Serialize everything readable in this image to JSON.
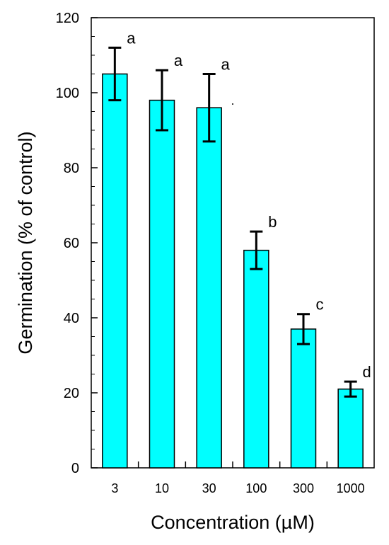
{
  "chart_data": {
    "type": "bar",
    "categories": [
      "3",
      "10",
      "30",
      "100",
      "300",
      "1000"
    ],
    "values": [
      105,
      98,
      96,
      58,
      37,
      21
    ],
    "error_lower": [
      98,
      90,
      87,
      53,
      33,
      19
    ],
    "error_upper": [
      112,
      106,
      105,
      63,
      41,
      23
    ],
    "significance": [
      "a",
      "a",
      "a",
      "b",
      "c",
      "d"
    ],
    "xlabel": "Concentration (µM)",
    "ylabel": "Germination  (% of control)",
    "ylim": [
      0,
      120
    ],
    "yticks": [
      "0",
      "20",
      "40",
      "60",
      "80",
      "100",
      "120"
    ],
    "grid": false,
    "legend": "none",
    "bar_color": "#00ffff"
  }
}
